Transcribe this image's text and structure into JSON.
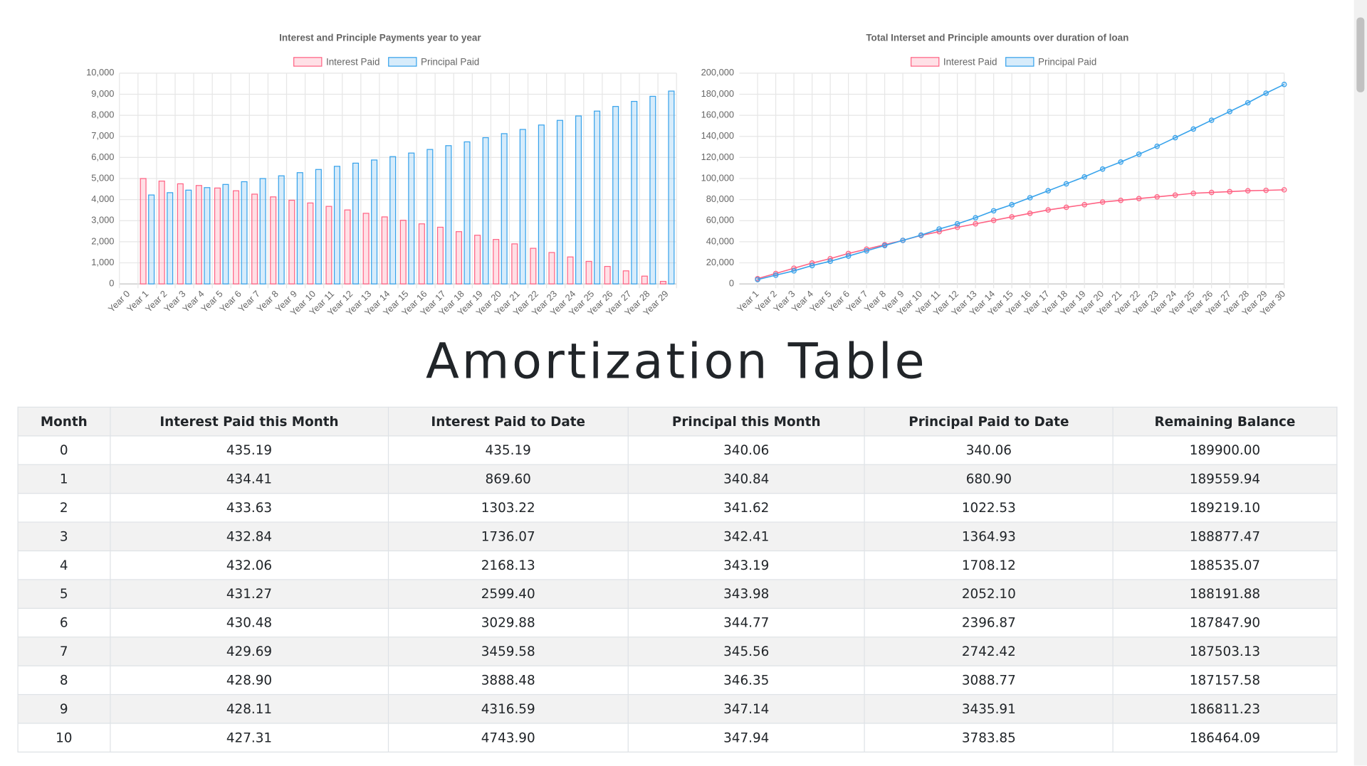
{
  "chart_data": [
    {
      "type": "bar",
      "title": "Interest and Principle Payments year to year",
      "categories": [
        "Year 0",
        "Year 1",
        "Year 2",
        "Year 3",
        "Year 4",
        "Year 5",
        "Year 6",
        "Year 7",
        "Year 8",
        "Year 9",
        "Year 10",
        "Year 11",
        "Year 12",
        "Year 13",
        "Year 14",
        "Year 15",
        "Year 16",
        "Year 17",
        "Year 18",
        "Year 19",
        "Year 20",
        "Year 21",
        "Year 22",
        "Year 23",
        "Year 24",
        "Year 25",
        "Year 26",
        "Year 27",
        "Year 28",
        "Year 29"
      ],
      "series": [
        {
          "name": "Interest Paid",
          "color": "#ff6384",
          "values": [
            null,
            5000,
            4880,
            4750,
            4670,
            4550,
            4420,
            4260,
            4130,
            3970,
            3840,
            3680,
            3510,
            3350,
            3180,
            3020,
            2850,
            2690,
            2480,
            2310,
            2110,
            1900,
            1690,
            1490,
            1280,
            1070,
            830,
            620,
            370,
            120
          ]
        },
        {
          "name": "Principal Paid",
          "color": "#36a2eb",
          "values": [
            null,
            4220,
            4330,
            4450,
            4570,
            4720,
            4850,
            5000,
            5130,
            5280,
            5430,
            5580,
            5730,
            5880,
            6040,
            6210,
            6380,
            6560,
            6740,
            6940,
            7130,
            7330,
            7540,
            7760,
            7970,
            8200,
            8420,
            8660,
            8900,
            9150
          ]
        }
      ],
      "ylim": [
        0,
        10000
      ],
      "yticks": [
        0,
        {
          "value": 1000,
          "label": "1,000"
        },
        {
          "value": 2000,
          "label": "2,000"
        },
        {
          "value": 3000,
          "label": "3,000"
        },
        {
          "value": 4000,
          "label": "4,000"
        },
        {
          "value": 5000,
          "label": "5,000"
        },
        {
          "value": 6000,
          "label": "6,000"
        },
        {
          "value": 7000,
          "label": "7,000"
        },
        {
          "value": 8000,
          "label": "8,000"
        },
        {
          "value": 9000,
          "label": "9,000"
        },
        {
          "value": 10000,
          "label": "10,000"
        }
      ],
      "grid": true,
      "legend": "top"
    },
    {
      "type": "line",
      "title": "Total Interset and Principle amounts over duration of loan",
      "categories": [
        "Year 1",
        "Year 2",
        "Year 3",
        "Year 4",
        "Year 5",
        "Year 6",
        "Year 7",
        "Year 8",
        "Year 9",
        "Year 10",
        "Year 11",
        "Year 12",
        "Year 13",
        "Year 14",
        "Year 15",
        "Year 16",
        "Year 17",
        "Year 18",
        "Year 19",
        "Year 20",
        "Year 21",
        "Year 22",
        "Year 23",
        "Year 24",
        "Year 25",
        "Year 26",
        "Year 27",
        "Year 28",
        "Year 29",
        "Year 30"
      ],
      "series": [
        {
          "name": "Interest Paid",
          "color": "#ff6384",
          "values": [
            5000,
            9900,
            14900,
            19800,
            24000,
            28900,
            33000,
            37200,
            41300,
            46000,
            49600,
            53700,
            57000,
            60300,
            63600,
            67000,
            70200,
            72700,
            75200,
            77700,
            79300,
            81000,
            82600,
            84300,
            86000,
            86800,
            87600,
            88400,
            88800,
            89300
          ]
        },
        {
          "name": "Principal Paid",
          "color": "#36a2eb",
          "values": [
            4100,
            8300,
            12400,
            17400,
            21500,
            26400,
            31400,
            36400,
            41300,
            46300,
            52100,
            57000,
            62800,
            69400,
            75200,
            81800,
            88400,
            95000,
            101600,
            109000,
            115700,
            123100,
            130600,
            138800,
            147000,
            155300,
            163600,
            171900,
            181000,
            189300
          ]
        }
      ],
      "ylim": [
        0,
        200000
      ],
      "yticks": [
        0,
        {
          "value": 20000,
          "label": "20,000"
        },
        {
          "value": 40000,
          "label": "40,000"
        },
        {
          "value": 60000,
          "label": "60,000"
        },
        {
          "value": 80000,
          "label": "80,000"
        },
        {
          "value": 100000,
          "label": "100,000"
        },
        {
          "value": 120000,
          "label": "120,000"
        },
        {
          "value": 140000,
          "label": "140,000"
        },
        {
          "value": 160000,
          "label": "160,000"
        },
        {
          "value": 180000,
          "label": "180,000"
        },
        {
          "value": 200000,
          "label": "200,000"
        }
      ],
      "grid": true,
      "legend": "top"
    }
  ],
  "heading": "Amortization Table",
  "table": {
    "headers": [
      "Month",
      "Interest Paid this Month",
      "Interest Paid to Date",
      "Principal this Month",
      "Principal Paid to Date",
      "Remaining Balance"
    ],
    "rows": [
      [
        "0",
        "435.19",
        "435.19",
        "340.06",
        "340.06",
        "189900.00"
      ],
      [
        "1",
        "434.41",
        "869.60",
        "340.84",
        "680.90",
        "189559.94"
      ],
      [
        "2",
        "433.63",
        "1303.22",
        "341.62",
        "1022.53",
        "189219.10"
      ],
      [
        "3",
        "432.84",
        "1736.07",
        "342.41",
        "1364.93",
        "188877.47"
      ],
      [
        "4",
        "432.06",
        "2168.13",
        "343.19",
        "1708.12",
        "188535.07"
      ],
      [
        "5",
        "431.27",
        "2599.40",
        "343.98",
        "2052.10",
        "188191.88"
      ],
      [
        "6",
        "430.48",
        "3029.88",
        "344.77",
        "2396.87",
        "187847.90"
      ],
      [
        "7",
        "429.69",
        "3459.58",
        "345.56",
        "2742.42",
        "187503.13"
      ],
      [
        "8",
        "428.90",
        "3888.48",
        "346.35",
        "3088.77",
        "187157.58"
      ],
      [
        "9",
        "428.11",
        "4316.59",
        "347.14",
        "3435.91",
        "186811.23"
      ],
      [
        "10",
        "427.31",
        "4743.90",
        "347.94",
        "3783.85",
        "186464.09"
      ]
    ]
  }
}
